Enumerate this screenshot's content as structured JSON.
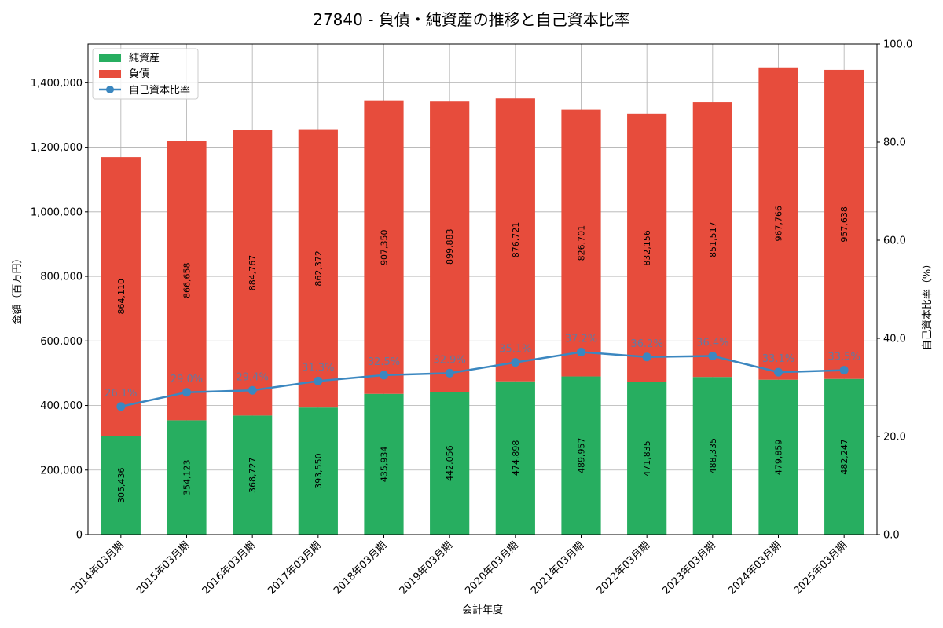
{
  "chart_data": {
    "type": "bar",
    "title": "27840 - 負債・純資産の推移と自己資本比率",
    "xlabel": "会計年度",
    "ylabel": "金額（百万円）",
    "y2label": "自己資本比率（%）",
    "ylim": [
      0,
      1520000
    ],
    "y2lim": [
      0,
      100
    ],
    "yticks": [
      0,
      200000,
      400000,
      600000,
      800000,
      1000000,
      1200000,
      1400000
    ],
    "ytick_labels": [
      "0",
      "200,000",
      "400,000",
      "600,000",
      "800,000",
      "1,000,000",
      "1,200,000",
      "1,400,000"
    ],
    "y2ticks": [
      0,
      20,
      40,
      60,
      80,
      100
    ],
    "y2tick_labels": [
      "0.0",
      "20.0",
      "40.0",
      "60.0",
      "80.0",
      "100.0"
    ],
    "grid": true,
    "legend_position": "top-left",
    "categories": [
      "2014年03月期",
      "2015年03月期",
      "2016年03月期",
      "2017年03月期",
      "2018年03月期",
      "2019年03月期",
      "2020年03月期",
      "2021年03月期",
      "2022年03月期",
      "2023年03月期",
      "2024年03月期",
      "2025年03月期"
    ],
    "series": [
      {
        "name": "純資産",
        "color": "#27ae60",
        "values": [
          305436,
          354123,
          368727,
          393550,
          435934,
          442056,
          474898,
          489957,
          471835,
          488335,
          479859,
          482247
        ],
        "labels": [
          "305,436",
          "354,123",
          "368,727",
          "393,550",
          "435,934",
          "442,056",
          "474,898",
          "489,957",
          "471,835",
          "488,335",
          "479,859",
          "482,247"
        ]
      },
      {
        "name": "負債",
        "color": "#e74c3c",
        "values": [
          864110,
          866658,
          884767,
          862372,
          907350,
          899883,
          876721,
          826701,
          832156,
          851517,
          967766,
          957638
        ],
        "labels": [
          "864,110",
          "866,658",
          "884,767",
          "862,372",
          "907,350",
          "899,883",
          "876,721",
          "826,701",
          "832,156",
          "851,517",
          "967,766",
          "957,638"
        ]
      },
      {
        "name": "自己資本比率",
        "color": "#3b87c0",
        "axis": "right",
        "values": [
          26.1,
          29.0,
          29.4,
          31.3,
          32.5,
          32.9,
          35.1,
          37.2,
          36.2,
          36.4,
          33.1,
          33.5
        ],
        "labels": [
          "26.1%",
          "29.0%",
          "29.4%",
          "31.3%",
          "32.5%",
          "32.9%",
          "35.1%",
          "37.2%",
          "36.2%",
          "36.4%",
          "33.1%",
          "33.5%"
        ]
      }
    ]
  }
}
